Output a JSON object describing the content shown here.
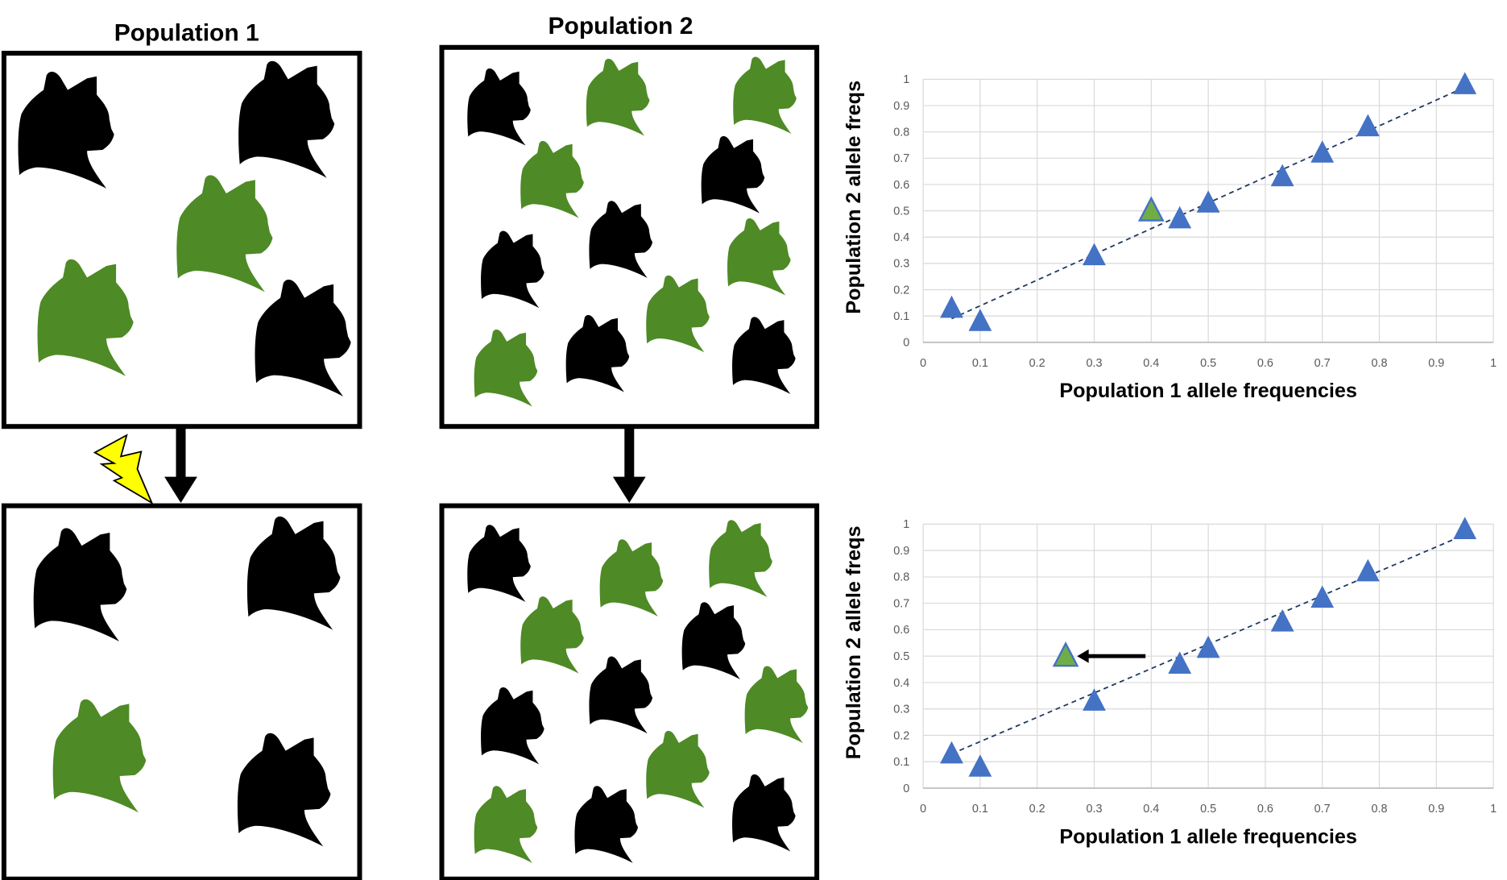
{
  "panels": {
    "population_1_title": "Population 1",
    "population_2_title": "Population 2",
    "population_1_before": [
      "black",
      "black",
      "green",
      "green",
      "black"
    ],
    "population_2_before": [
      "black",
      "green",
      "green",
      "green",
      "black",
      "black",
      "black",
      "green",
      "green",
      "black",
      "green",
      "black"
    ],
    "population_1_after": [
      "black",
      "black",
      "green",
      "black"
    ],
    "population_2_after": [
      "black",
      "green",
      "green",
      "green",
      "black",
      "black",
      "black",
      "green",
      "green",
      "black",
      "green",
      "black"
    ],
    "event_icon": "lightning-bolt-icon"
  },
  "colors": {
    "black_cat": "#000000",
    "green_cat": "#4e8a25",
    "marker": "#4472c4",
    "highlight_marker": "#70ad47",
    "lightning": "#ffff00",
    "gridline": "#d9d9d9",
    "trendline": "#1f3864"
  },
  "chart_data": [
    {
      "type": "scatter",
      "xlabel": "Population 1 allele frequencies",
      "ylabel": "Population 2 allele freqs",
      "xlim": [
        0,
        1
      ],
      "ylim": [
        0,
        1
      ],
      "x_ticks": [
        "0",
        "0.1",
        "0.2",
        "0.3",
        "0.4",
        "0.5",
        "0.6",
        "0.7",
        "0.8",
        "0.9",
        "1"
      ],
      "y_ticks": [
        "0",
        "0.1",
        "0.2",
        "0.3",
        "0.4",
        "0.5",
        "0.6",
        "0.7",
        "0.8",
        "0.9",
        "1"
      ],
      "grid": true,
      "marker": "triangle",
      "points": [
        {
          "x": 0.05,
          "y": 0.13
        },
        {
          "x": 0.1,
          "y": 0.08
        },
        {
          "x": 0.3,
          "y": 0.33
        },
        {
          "x": 0.4,
          "y": 0.5,
          "highlight": true
        },
        {
          "x": 0.45,
          "y": 0.47
        },
        {
          "x": 0.5,
          "y": 0.53
        },
        {
          "x": 0.63,
          "y": 0.63
        },
        {
          "x": 0.7,
          "y": 0.72
        },
        {
          "x": 0.78,
          "y": 0.82
        },
        {
          "x": 0.95,
          "y": 0.98
        }
      ],
      "trendline": {
        "style": "dashed",
        "from": {
          "x": 0.05,
          "y": 0.09
        },
        "to": {
          "x": 0.95,
          "y": 0.97
        }
      }
    },
    {
      "type": "scatter",
      "xlabel": "Population 1 allele frequencies",
      "ylabel": "Population 2 allele freqs",
      "xlim": [
        0,
        1
      ],
      "ylim": [
        0,
        1
      ],
      "x_ticks": [
        "0",
        "0.1",
        "0.2",
        "0.3",
        "0.4",
        "0.5",
        "0.6",
        "0.7",
        "0.8",
        "0.9",
        "1"
      ],
      "y_ticks": [
        "0",
        "0.1",
        "0.2",
        "0.3",
        "0.4",
        "0.5",
        "0.6",
        "0.7",
        "0.8",
        "0.9",
        "1"
      ],
      "grid": true,
      "marker": "triangle",
      "points": [
        {
          "x": 0.05,
          "y": 0.13
        },
        {
          "x": 0.1,
          "y": 0.08
        },
        {
          "x": 0.3,
          "y": 0.33
        },
        {
          "x": 0.25,
          "y": 0.5,
          "highlight": true
        },
        {
          "x": 0.45,
          "y": 0.47
        },
        {
          "x": 0.5,
          "y": 0.53
        },
        {
          "x": 0.63,
          "y": 0.63
        },
        {
          "x": 0.7,
          "y": 0.72
        },
        {
          "x": 0.78,
          "y": 0.82
        },
        {
          "x": 0.95,
          "y": 0.98
        }
      ],
      "trendline": {
        "style": "dashed",
        "from": {
          "x": 0.05,
          "y": 0.13
        },
        "to": {
          "x": 0.95,
          "y": 0.96
        }
      },
      "annotation_arrow": {
        "from": {
          "x": 0.39,
          "y": 0.5
        },
        "to": {
          "x": 0.27,
          "y": 0.5
        }
      }
    }
  ]
}
